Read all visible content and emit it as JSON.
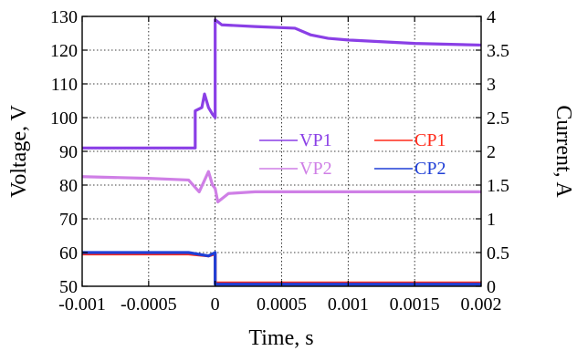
{
  "chart_data": {
    "type": "line",
    "xlabel": "Time,  s",
    "ylabel_left": "Voltage,  V",
    "ylabel_right": "Current,  A",
    "xlim": [
      -0.001,
      0.002
    ],
    "ylim_left": [
      50,
      130
    ],
    "ylim_right": [
      0,
      4
    ],
    "grid": true,
    "legend_position": "center-right",
    "x_ticks": [
      {
        "value": -0.001,
        "label": "-0.001"
      },
      {
        "value": -0.0005,
        "label": "-0.0005"
      },
      {
        "value": 0,
        "label": "0"
      },
      {
        "value": 0.0005,
        "label": "0.0005"
      },
      {
        "value": 0.001,
        "label": "0.001"
      },
      {
        "value": 0.0015,
        "label": "0.0015"
      },
      {
        "value": 0.002,
        "label": "0.002"
      }
    ],
    "y_left_ticks": [
      {
        "value": 50,
        "label": "50"
      },
      {
        "value": 60,
        "label": "60"
      },
      {
        "value": 70,
        "label": "70"
      },
      {
        "value": 80,
        "label": "80"
      },
      {
        "value": 90,
        "label": "90"
      },
      {
        "value": 100,
        "label": "100"
      },
      {
        "value": 110,
        "label": "110"
      },
      {
        "value": 120,
        "label": "120"
      },
      {
        "value": 130,
        "label": "130"
      }
    ],
    "y_right_ticks": [
      {
        "value": 0,
        "label": "0"
      },
      {
        "value": 0.5,
        "label": "0.5"
      },
      {
        "value": 1,
        "label": "1"
      },
      {
        "value": 1.5,
        "label": "1.5"
      },
      {
        "value": 2,
        "label": "2"
      },
      {
        "value": 2.5,
        "label": "2.5"
      },
      {
        "value": 3,
        "label": "3"
      },
      {
        "value": 3.5,
        "label": "3.5"
      },
      {
        "value": 4,
        "label": "4"
      }
    ],
    "series": [
      {
        "name": "VP1",
        "axis": "left",
        "color": "#8a3fe6",
        "x": [
          -0.001,
          -0.00015,
          -0.00015,
          -0.0001,
          -8e-05,
          -5e-05,
          -2e-05,
          0,
          0,
          5e-05,
          0.0003,
          0.0006,
          0.00072,
          0.00085,
          0.001,
          0.0015,
          0.002
        ],
        "y": [
          91,
          91,
          102,
          103,
          107,
          103,
          101,
          100,
          129,
          127.5,
          127,
          126.5,
          124.5,
          123.5,
          123,
          122,
          121.5
        ]
      },
      {
        "name": "VP2",
        "axis": "left",
        "color": "#cf7fe6",
        "x": [
          -0.001,
          -0.0005,
          -0.0002,
          -0.00012,
          -5e-05,
          -2e-05,
          0,
          2e-05,
          0.0001,
          0.0003,
          0.001,
          0.002
        ],
        "y": [
          82.5,
          82,
          81.5,
          78,
          84,
          80,
          79,
          75,
          77.5,
          78,
          78,
          78
        ]
      },
      {
        "name": "CP1",
        "axis": "right",
        "color": "#ff2a1a",
        "x": [
          -0.001,
          -0.0002,
          -5e-05,
          0,
          0,
          0.0005,
          0.001,
          0.0015,
          0.002
        ],
        "y": [
          0.48,
          0.48,
          0.45,
          0.48,
          0.05,
          0.05,
          0.05,
          0.05,
          0.05
        ]
      },
      {
        "name": "CP2",
        "axis": "right",
        "color": "#1f3fd6",
        "x": [
          -0.001,
          -0.0002,
          -5e-05,
          0,
          0,
          0.0005,
          0.001,
          0.0015,
          0.002
        ],
        "y": [
          0.5,
          0.5,
          0.45,
          0.5,
          0.03,
          0.03,
          0.03,
          0.03,
          0.03
        ]
      }
    ]
  }
}
